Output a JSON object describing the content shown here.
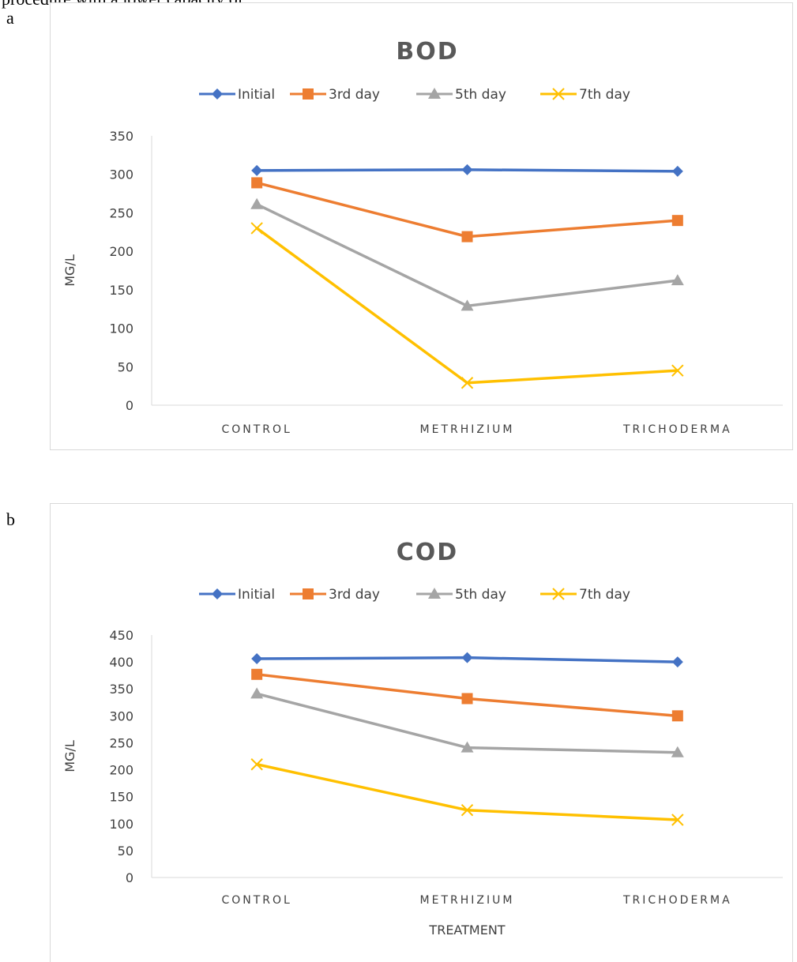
{
  "top_clipped_text": "procedure with a lower capacity of",
  "charts": [
    {
      "panel_label": "a",
      "chart_data": {
        "type": "line",
        "title": "BOD",
        "ylabel": "MG/L",
        "xlabel": "",
        "ylim": [
          0,
          350
        ],
        "ytick_step": 50,
        "categories": [
          "CONTROL",
          "METRHIZIUM",
          "TRICHODERMA"
        ],
        "legend_position": "top",
        "grid": false,
        "series": [
          {
            "name": "Initial",
            "values": [
              305,
              306,
              304
            ],
            "color": "#4472C4",
            "marker": "diamond"
          },
          {
            "name": "3rd day",
            "values": [
              289,
              219,
              240
            ],
            "color": "#ED7D31",
            "marker": "square"
          },
          {
            "name": "5th day",
            "values": [
              261,
              129,
              162
            ],
            "color": "#A5A5A5",
            "marker": "triangle"
          },
          {
            "name": "7th day",
            "values": [
              230,
              29,
              45
            ],
            "color": "#FFC000",
            "marker": "x"
          }
        ]
      }
    },
    {
      "panel_label": "b",
      "chart_data": {
        "type": "line",
        "title": "COD",
        "ylabel": "MG/L",
        "xlabel": "TREATMENT",
        "ylim": [
          0,
          450
        ],
        "ytick_step": 50,
        "categories": [
          "CONTROL",
          "METRHIZIUM",
          "TRICHODERMA"
        ],
        "legend_position": "top",
        "grid": false,
        "series": [
          {
            "name": "Initial",
            "values": [
              406,
              408,
              400
            ],
            "color": "#4472C4",
            "marker": "diamond"
          },
          {
            "name": "3rd day",
            "values": [
              377,
              332,
              300
            ],
            "color": "#ED7D31",
            "marker": "square"
          },
          {
            "name": "5th day",
            "values": [
              341,
              241,
              232
            ],
            "color": "#A5A5A5",
            "marker": "triangle"
          },
          {
            "name": "7th day",
            "values": [
              210,
              125,
              107
            ],
            "color": "#FFC000",
            "marker": "x"
          }
        ]
      }
    }
  ]
}
